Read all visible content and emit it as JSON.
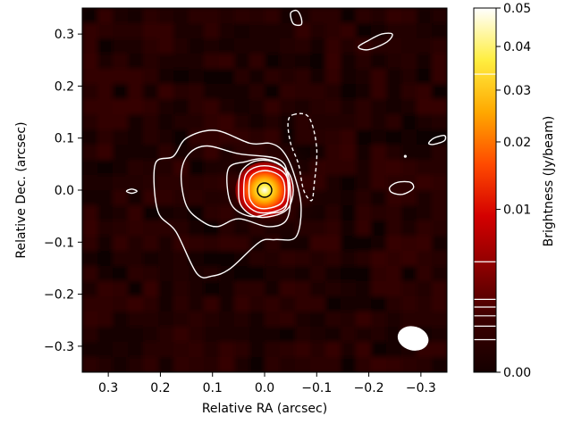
{
  "chart_data": {
    "type": "heatmap",
    "xlabel": "Relative RA (arcsec)",
    "ylabel": "Relative Dec. (arcsec)",
    "colorbar_label": "Brightness (Jy/beam)",
    "xlim": [
      0.35,
      -0.35
    ],
    "ylim": [
      -0.35,
      0.35
    ],
    "x_ticks": [
      0.3,
      0.2,
      0.1,
      0.0,
      -0.1,
      -0.2,
      -0.3
    ],
    "x_tick_labels": [
      "0.3",
      "0.2",
      "0.1",
      "0.0",
      "−0.1",
      "−0.2",
      "−0.3"
    ],
    "y_ticks": [
      0.3,
      0.2,
      0.1,
      0.0,
      -0.1,
      -0.2,
      -0.3
    ],
    "y_tick_labels": [
      "0.3",
      "0.2",
      "0.1",
      "0.0",
      "−0.1",
      "−0.2",
      "−0.3"
    ],
    "colorbar_range": [
      0.0,
      0.05
    ],
    "colorbar_scale": "sqrt",
    "colorbar_ticks": [
      0.0,
      0.01,
      0.02,
      0.03,
      0.04,
      0.05
    ],
    "colorbar_tick_labels": [
      "0.00",
      "0.01",
      "0.02",
      "0.03",
      "0.04",
      "0.05"
    ],
    "colorbar_contour_levels": [
      0.0004,
      0.0008,
      0.0012,
      0.0016,
      0.002,
      0.0046,
      0.0335
    ],
    "colormap": [
      "#150000",
      "#3a0000",
      "#8a0000",
      "#d40000",
      "#ff4a00",
      "#ffa800",
      "#ffee40",
      "#ffffff"
    ],
    "contour_color": "#ffffff",
    "source": {
      "x": 0.0,
      "y": 0.0,
      "peak": 0.05
    },
    "marker": {
      "x": 0.0,
      "y": 0.0
    },
    "beam": {
      "x": -0.285,
      "y": -0.285,
      "major": 0.06,
      "minor": 0.046,
      "pa_deg": 15
    },
    "contours": [
      {
        "style": "solid",
        "points": [
          [
            0.028,
            0.09
          ],
          [
            0.095,
            0.115
          ],
          [
            0.15,
            0.1
          ],
          [
            0.175,
            0.065
          ],
          [
            0.21,
            0.05
          ],
          [
            0.205,
            -0.04
          ],
          [
            0.17,
            -0.08
          ],
          [
            0.13,
            -0.16
          ],
          [
            0.1,
            -0.165
          ],
          [
            0.065,
            -0.15
          ],
          [
            0.01,
            -0.1
          ],
          [
            -0.02,
            -0.095
          ],
          [
            -0.06,
            -0.09
          ],
          [
            -0.07,
            -0.03
          ],
          [
            -0.055,
            0.035
          ],
          [
            -0.035,
            0.075
          ],
          [
            -0.01,
            0.09
          ]
        ]
      },
      {
        "style": "solid",
        "points": [
          [
            0.05,
            0.07
          ],
          [
            0.11,
            0.085
          ],
          [
            0.145,
            0.07
          ],
          [
            0.16,
            0.03
          ],
          [
            0.15,
            -0.03
          ],
          [
            0.12,
            -0.06
          ],
          [
            0.09,
            -0.07
          ],
          [
            0.05,
            -0.055
          ],
          [
            -0.005,
            -0.07
          ],
          [
            -0.04,
            -0.06
          ],
          [
            -0.05,
            -0.02
          ],
          [
            -0.045,
            0.03
          ],
          [
            -0.025,
            0.06
          ]
        ]
      },
      {
        "style": "solid",
        "points": [
          [
            0.035,
            0.055
          ],
          [
            0.07,
            0.04
          ],
          [
            0.065,
            -0.025
          ],
          [
            0.03,
            -0.05
          ],
          [
            -0.01,
            -0.045
          ],
          [
            -0.04,
            -0.035
          ],
          [
            -0.045,
            0.01
          ],
          [
            -0.035,
            0.045
          ],
          [
            0.0,
            0.06
          ]
        ]
      },
      {
        "style": "solid",
        "points": [
          [
            0.05,
            0.0
          ],
          [
            0.045,
            0.035
          ],
          [
            0.02,
            0.055
          ],
          [
            -0.015,
            0.055
          ],
          [
            -0.045,
            0.035
          ],
          [
            -0.055,
            0.0
          ],
          [
            -0.045,
            -0.035
          ],
          [
            -0.015,
            -0.05
          ],
          [
            0.02,
            -0.05
          ],
          [
            0.045,
            -0.03
          ]
        ]
      },
      {
        "style": "solid",
        "points": [
          [
            0.04,
            0.0
          ],
          [
            0.036,
            0.03
          ],
          [
            0.015,
            0.045
          ],
          [
            -0.015,
            0.045
          ],
          [
            -0.04,
            0.03
          ],
          [
            -0.047,
            0.0
          ],
          [
            -0.04,
            -0.03
          ],
          [
            -0.015,
            -0.042
          ],
          [
            0.015,
            -0.042
          ],
          [
            0.036,
            -0.025
          ]
        ]
      },
      {
        "style": "solid",
        "points": [
          [
            0.03,
            0.0
          ],
          [
            0.027,
            0.024
          ],
          [
            0.01,
            0.036
          ],
          [
            -0.012,
            0.036
          ],
          [
            -0.033,
            0.024
          ],
          [
            -0.039,
            0.0
          ],
          [
            -0.033,
            -0.024
          ],
          [
            -0.012,
            -0.034
          ],
          [
            0.012,
            -0.034
          ],
          [
            0.027,
            -0.02
          ]
        ]
      },
      {
        "style": "dashed",
        "points": [
          [
            -0.055,
            0.145
          ],
          [
            -0.085,
            0.14
          ],
          [
            -0.1,
            0.08
          ],
          [
            -0.095,
            0.01
          ],
          [
            -0.09,
            -0.02
          ],
          [
            -0.075,
            0.0
          ],
          [
            -0.065,
            0.05
          ],
          [
            -0.05,
            0.09
          ],
          [
            -0.045,
            0.13
          ]
        ]
      },
      {
        "style": "solid",
        "points": [
          [
            -0.05,
            0.34
          ],
          [
            -0.055,
            0.32
          ],
          [
            -0.07,
            0.318
          ],
          [
            -0.07,
            0.332
          ],
          [
            -0.062,
            0.345
          ]
        ]
      },
      {
        "style": "solid",
        "points": [
          [
            -0.18,
            0.275
          ],
          [
            -0.2,
            0.288
          ],
          [
            -0.225,
            0.3
          ],
          [
            -0.245,
            0.3
          ],
          [
            -0.235,
            0.285
          ],
          [
            -0.2,
            0.27
          ]
        ]
      },
      {
        "style": "solid",
        "points": [
          [
            -0.315,
            0.09
          ],
          [
            -0.325,
            0.1
          ],
          [
            -0.345,
            0.105
          ],
          [
            -0.345,
            0.095
          ],
          [
            -0.325,
            0.088
          ]
        ]
      },
      {
        "style": "solid",
        "points": [
          [
            -0.24,
            0.005
          ],
          [
            -0.255,
            0.015
          ],
          [
            -0.28,
            0.015
          ],
          [
            -0.285,
            0.003
          ],
          [
            -0.265,
            -0.008
          ],
          [
            -0.245,
            -0.005
          ]
        ]
      },
      {
        "style": "solid",
        "points": [
          [
            0.265,
            -0.002
          ],
          [
            0.255,
            0.002
          ],
          [
            0.245,
            -0.002
          ],
          [
            0.255,
            -0.006
          ]
        ]
      }
    ]
  }
}
